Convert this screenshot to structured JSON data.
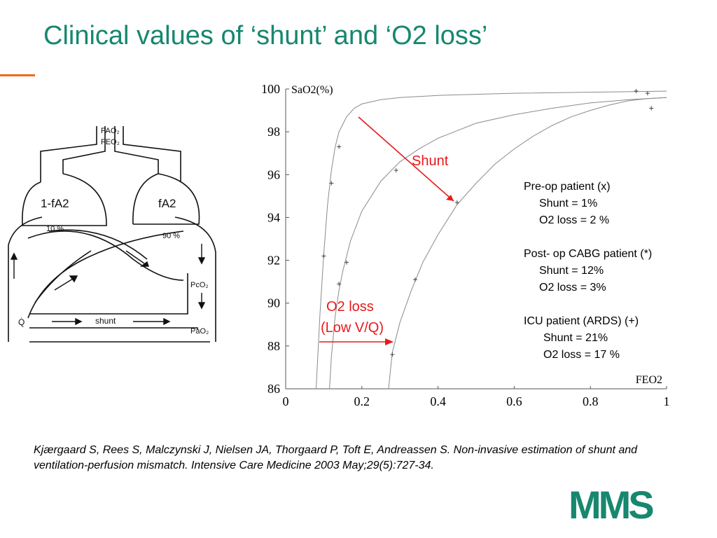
{
  "slide": {
    "title": "Clinical values of ‘shunt’ and ‘O2 loss’",
    "accent_color": "#f06a1a",
    "title_color": "#17876f"
  },
  "diagram": {
    "labels": {
      "pao2_in": "PAO₂",
      "feo2": "FEO₂",
      "left_comp": "1-fA2",
      "right_comp": "fA2",
      "pct10": "10 %",
      "pct90": "90 %",
      "pco2": "PcO₂",
      "q": "Q̇",
      "shunt": "shunt",
      "pao2_out": "PaO₂"
    }
  },
  "chart_data": {
    "type": "line",
    "title": "",
    "xlabel": "FEO2",
    "ylabel": "SaO2(%)",
    "xlim": [
      0,
      1
    ],
    "ylim": [
      86,
      100
    ],
    "x_ticks": [
      0,
      0.2,
      0.4,
      0.6,
      0.8,
      1
    ],
    "x_tick_labels": [
      "0",
      "0.2",
      "0.4",
      "0.6",
      "0.8",
      "1"
    ],
    "y_ticks": [
      86,
      88,
      90,
      92,
      94,
      96,
      98,
      100
    ],
    "y_tick_labels": [
      "86",
      "88",
      "90",
      "92",
      "94",
      "96",
      "98",
      "100"
    ],
    "grid": false,
    "series": [
      {
        "x": [
          0.08,
          0.09,
          0.1,
          0.11,
          0.12,
          0.13,
          0.14,
          0.16,
          0.18,
          0.2,
          0.25,
          0.3,
          0.4,
          0.5,
          0.6,
          0.8,
          1.0
        ],
        "y": [
          86,
          89.5,
          92.3,
          94.6,
          96.2,
          97.3,
          98.0,
          98.7,
          99.1,
          99.3,
          99.5,
          99.6,
          99.7,
          99.75,
          99.8,
          99.85,
          99.9
        ]
      },
      {
        "x": [
          0.115,
          0.12,
          0.13,
          0.14,
          0.15,
          0.17,
          0.2,
          0.25,
          0.3,
          0.35,
          0.4,
          0.5,
          0.6,
          0.7,
          0.8,
          0.9,
          1.0
        ],
        "y": [
          86,
          87.5,
          89.4,
          90.6,
          91.5,
          92.9,
          94.3,
          95.7,
          96.6,
          97.2,
          97.7,
          98.4,
          98.8,
          99.1,
          99.35,
          99.5,
          99.6
        ]
      },
      {
        "x": [
          0.27,
          0.28,
          0.3,
          0.33,
          0.36,
          0.4,
          0.45,
          0.5,
          0.55,
          0.6,
          0.65,
          0.7,
          0.75,
          0.8,
          0.85,
          0.9,
          0.95,
          1.0
        ],
        "y": [
          86,
          87.7,
          89.1,
          90.6,
          91.9,
          93.2,
          94.6,
          95.6,
          96.5,
          97.2,
          97.8,
          98.3,
          98.7,
          99.0,
          99.25,
          99.45,
          99.55,
          99.6
        ]
      }
    ],
    "points": [
      {
        "x": 0.1,
        "y": 92.2
      },
      {
        "x": 0.12,
        "y": 95.6
      },
      {
        "x": 0.14,
        "y": 97.3
      },
      {
        "x": 0.14,
        "y": 90.9
      },
      {
        "x": 0.16,
        "y": 91.9
      },
      {
        "x": 0.29,
        "y": 96.2
      },
      {
        "x": 0.28,
        "y": 87.6
      },
      {
        "x": 0.34,
        "y": 91.1
      },
      {
        "x": 0.45,
        "y": 94.7
      },
      {
        "x": 0.92,
        "y": 99.9
      },
      {
        "x": 0.95,
        "y": 99.8
      },
      {
        "x": 0.96,
        "y": 99.1
      }
    ],
    "annotations": {
      "shunt": "Shunt",
      "o2loss_line1": "O2 loss",
      "o2loss_line2": "(Low V/Q)",
      "color": "#e8191c"
    }
  },
  "legend": {
    "groups": [
      {
        "head": "Pre-op patient (x)",
        "lines": [
          "Shunt = 1%",
          "O2 loss = 2 %"
        ]
      },
      {
        "head": "Post- op CABG patient (*)",
        "lines": [
          "Shunt = 12%",
          "O2 loss = 3%"
        ]
      },
      {
        "head": "ICU patient (ARDS) (+)",
        "lines": [
          "Shunt = 21%",
          "O2 loss = 17 %"
        ]
      }
    ]
  },
  "citation": "Kjærgaard S, Rees S, Malczynski J, Nielsen JA, Thorgaard P, Toft E, Andreassen S. Non-invasive estimation of shunt and ventilation-perfusion mismatch. Intensive Care Medicine 2003 May;29(5):727-34.",
  "logo": {
    "text": "MMS",
    "color": "#17876f"
  }
}
